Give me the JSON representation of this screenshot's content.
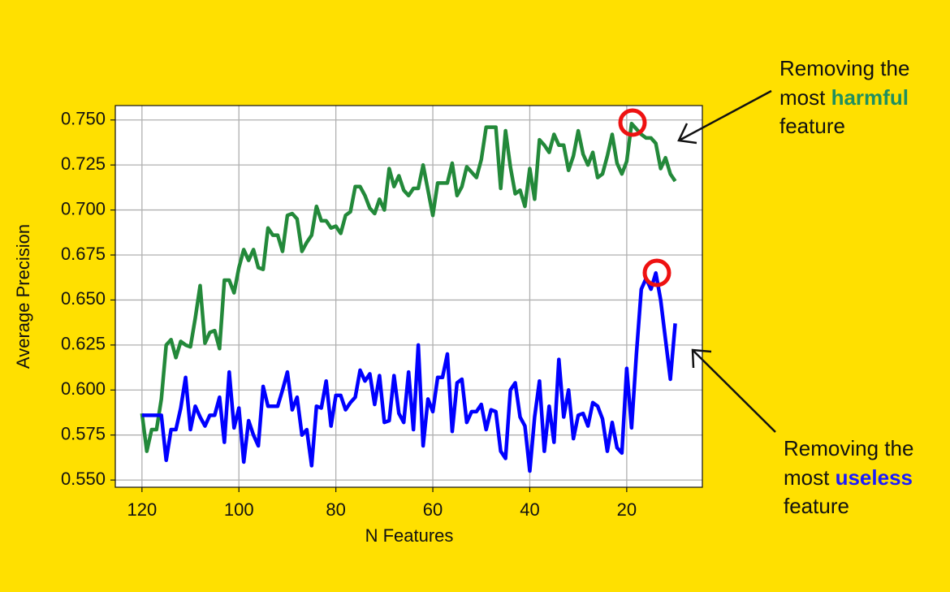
{
  "chart_data": {
    "type": "line",
    "xlabel": "N Features",
    "ylabel": "Average Precision",
    "x": [
      120,
      119,
      118,
      117,
      116,
      115,
      114,
      113,
      112,
      111,
      110,
      109,
      108,
      107,
      106,
      105,
      104,
      103,
      102,
      101,
      100,
      99,
      98,
      97,
      96,
      95,
      94,
      93,
      92,
      91,
      90,
      89,
      88,
      87,
      86,
      85,
      84,
      83,
      82,
      81,
      80,
      79,
      78,
      77,
      76,
      75,
      74,
      73,
      72,
      71,
      70,
      69,
      68,
      67,
      66,
      65,
      64,
      63,
      62,
      61,
      60,
      59,
      58,
      57,
      56,
      55,
      54,
      53,
      52,
      51,
      50,
      49,
      48,
      47,
      46,
      45,
      44,
      43,
      42,
      41,
      40,
      39,
      38,
      37,
      36,
      35,
      34,
      33,
      32,
      31,
      30,
      29,
      28,
      27,
      26,
      25,
      24,
      23,
      22,
      21,
      20,
      19,
      18,
      17,
      16,
      15,
      14,
      13,
      12,
      11,
      10
    ],
    "series": [
      {
        "color": "#23893a",
        "values": [
          0.587,
          0.566,
          0.578,
          0.578,
          0.595,
          0.625,
          0.628,
          0.618,
          0.627,
          0.625,
          0.624,
          0.64,
          0.658,
          0.626,
          0.632,
          0.633,
          0.623,
          0.661,
          0.661,
          0.654,
          0.668,
          0.678,
          0.672,
          0.678,
          0.668,
          0.667,
          0.69,
          0.686,
          0.686,
          0.677,
          0.697,
          0.698,
          0.695,
          0.677,
          0.682,
          0.686,
          0.702,
          0.694,
          0.694,
          0.69,
          0.691,
          0.687,
          0.697,
          0.699,
          0.713,
          0.713,
          0.708,
          0.701,
          0.698,
          0.706,
          0.7,
          0.723,
          0.713,
          0.719,
          0.711,
          0.708,
          0.712,
          0.712,
          0.725,
          0.711,
          0.697,
          0.715,
          0.715,
          0.715,
          0.726,
          0.708,
          0.713,
          0.724,
          0.721,
          0.718,
          0.728,
          0.746,
          0.746,
          0.746,
          0.712,
          0.744,
          0.724,
          0.709,
          0.711,
          0.702,
          0.723,
          0.706,
          0.739,
          0.736,
          0.732,
          0.742,
          0.736,
          0.736,
          0.722,
          0.73,
          0.744,
          0.731,
          0.725,
          0.732,
          0.718,
          0.72,
          0.73,
          0.742,
          0.726,
          0.72,
          0.727,
          0.748,
          0.745,
          0.742,
          0.74,
          0.74,
          0.737,
          0.723,
          0.729,
          0.72,
          0.716
        ]
      },
      {
        "color": "#0000ff",
        "values": [
          0.586,
          0.586,
          0.586,
          0.586,
          0.586,
          0.561,
          0.578,
          0.578,
          0.59,
          0.607,
          0.578,
          0.591,
          0.585,
          0.58,
          0.586,
          0.586,
          0.596,
          0.571,
          0.61,
          0.579,
          0.59,
          0.56,
          0.583,
          0.575,
          0.569,
          0.602,
          0.591,
          0.591,
          0.591,
          0.6,
          0.61,
          0.589,
          0.596,
          0.575,
          0.578,
          0.558,
          0.591,
          0.59,
          0.605,
          0.58,
          0.597,
          0.597,
          0.589,
          0.593,
          0.596,
          0.611,
          0.605,
          0.609,
          0.592,
          0.608,
          0.582,
          0.583,
          0.608,
          0.587,
          0.582,
          0.61,
          0.578,
          0.625,
          0.569,
          0.595,
          0.588,
          0.607,
          0.607,
          0.62,
          0.577,
          0.604,
          0.606,
          0.582,
          0.588,
          0.588,
          0.592,
          0.578,
          0.589,
          0.588,
          0.566,
          0.562,
          0.6,
          0.604,
          0.585,
          0.58,
          0.555,
          0.585,
          0.605,
          0.566,
          0.591,
          0.571,
          0.617,
          0.585,
          0.6,
          0.573,
          0.586,
          0.587,
          0.58,
          0.593,
          0.591,
          0.584,
          0.566,
          0.582,
          0.568,
          0.565,
          0.612,
          0.579,
          0.62,
          0.656,
          0.662,
          0.656,
          0.665,
          0.65,
          0.628,
          0.606,
          0.637
        ]
      }
    ],
    "xlim": [
      125.5,
      4.4
    ],
    "ylim": [
      0.546,
      0.758
    ],
    "xticks": [
      120,
      100,
      80,
      60,
      40,
      20
    ],
    "yticks": [
      {
        "value": 0.75,
        "label": "0.750"
      },
      0.725,
      {
        "value": 0.7,
        "label": "0.700"
      },
      0.675,
      {
        "value": 0.65,
        "label": "0.650"
      },
      0.625,
      {
        "value": 0.6,
        "label": "0.600"
      },
      0.575,
      {
        "value": 0.55,
        "label": "0.550"
      }
    ],
    "grid": true,
    "annotations": [
      {
        "text_before": "Removing the",
        "text_mid": "most",
        "highlight": "harmful",
        "text_after": "feature",
        "color": "#1f8f5f"
      },
      {
        "text_before": "Removing the",
        "text_mid": "most",
        "highlight": "useless",
        "text_after": "feature",
        "color": "#1a1aff"
      }
    ]
  }
}
